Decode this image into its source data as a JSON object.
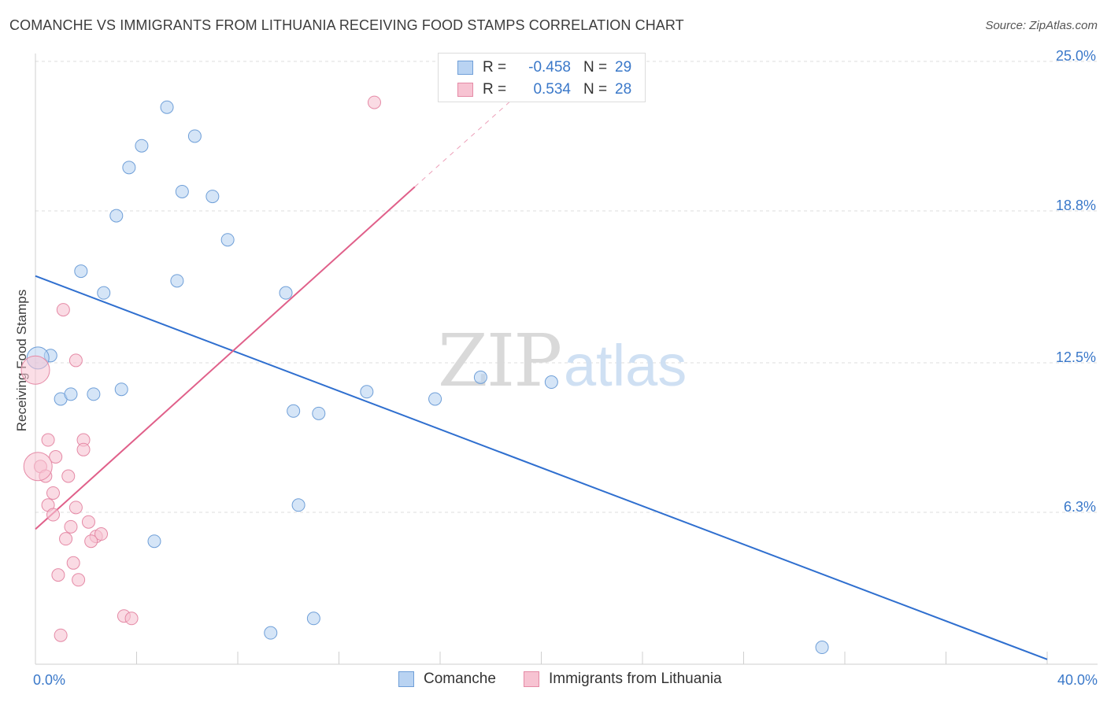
{
  "title": "COMANCHE VS IMMIGRANTS FROM LITHUANIA RECEIVING FOOD STAMPS CORRELATION CHART",
  "source": "Source: ZipAtlas.com",
  "watermark": {
    "zip": "ZIP",
    "atlas": "atlas"
  },
  "colors": {
    "blue_fill": "#b9d3f2",
    "blue_stroke": "#6f9fd8",
    "blue_line": "#2f6fcf",
    "pink_fill": "#f7c3d2",
    "pink_stroke": "#e58aa6",
    "pink_line": "#e0608a",
    "tick_text": "#3a78c9",
    "grid": "#dddddd"
  },
  "legend": {
    "rows": [
      {
        "r_label": "R =",
        "r_value": "-0.458",
        "n_label": "N =",
        "n_value": "29"
      },
      {
        "r_label": "R =",
        "r_value": "0.534",
        "n_label": "N =",
        "n_value": "28"
      }
    ]
  },
  "chart_data": {
    "type": "scatter",
    "title": "COMANCHE VS IMMIGRANTS FROM LITHUANIA RECEIVING FOOD STAMPS CORRELATION CHART",
    "xlabel": "",
    "ylabel": "Receiving Food Stamps",
    "xlim": [
      0,
      40
    ],
    "ylim": [
      0,
      25
    ],
    "x_tick_labels": [
      {
        "value": 0,
        "label": "0.0%"
      },
      {
        "value": 40,
        "label": "40.0%"
      }
    ],
    "y_tick_labels": [
      {
        "value": 6.3,
        "label": "6.3%"
      },
      {
        "value": 12.5,
        "label": "12.5%"
      },
      {
        "value": 18.8,
        "label": "18.8%"
      },
      {
        "value": 25.0,
        "label": "25.0%"
      }
    ],
    "grid": true,
    "series": [
      {
        "name": "Comanche",
        "color": "#6f9fd8",
        "points": [
          [
            0.6,
            12.8
          ],
          [
            1.0,
            11.0
          ],
          [
            1.4,
            11.2
          ],
          [
            2.3,
            11.2
          ],
          [
            3.4,
            11.4
          ],
          [
            1.8,
            16.3
          ],
          [
            2.7,
            15.4
          ],
          [
            3.2,
            18.6
          ],
          [
            3.7,
            20.6
          ],
          [
            4.2,
            21.5
          ],
          [
            5.2,
            23.1
          ],
          [
            5.6,
            15.9
          ],
          [
            5.8,
            19.6
          ],
          [
            6.3,
            21.9
          ],
          [
            7.0,
            19.4
          ],
          [
            7.6,
            17.6
          ],
          [
            9.9,
            15.4
          ],
          [
            10.2,
            10.5
          ],
          [
            11.2,
            10.4
          ],
          [
            13.1,
            11.3
          ],
          [
            15.8,
            11.0
          ],
          [
            17.6,
            11.9
          ],
          [
            20.4,
            11.7
          ],
          [
            4.7,
            5.1
          ],
          [
            10.4,
            6.6
          ],
          [
            9.3,
            1.3
          ],
          [
            11.0,
            1.9
          ],
          [
            31.1,
            0.7
          ],
          [
            0.1,
            12.7
          ]
        ]
      },
      {
        "name": "Immigrants from Lithuania",
        "color": "#e58aa6",
        "points": [
          [
            0.0,
            12.2
          ],
          [
            1.1,
            14.7
          ],
          [
            1.6,
            12.6
          ],
          [
            0.2,
            8.2
          ],
          [
            0.5,
            9.3
          ],
          [
            0.8,
            8.6
          ],
          [
            0.4,
            7.8
          ],
          [
            1.3,
            7.8
          ],
          [
            0.7,
            7.1
          ],
          [
            0.5,
            6.6
          ],
          [
            0.7,
            6.2
          ],
          [
            1.9,
            9.3
          ],
          [
            1.9,
            8.9
          ],
          [
            1.6,
            6.5
          ],
          [
            2.1,
            5.9
          ],
          [
            1.4,
            5.7
          ],
          [
            2.4,
            5.3
          ],
          [
            2.6,
            5.4
          ],
          [
            1.2,
            5.2
          ],
          [
            2.2,
            5.1
          ],
          [
            1.5,
            4.2
          ],
          [
            0.9,
            3.7
          ],
          [
            1.7,
            3.5
          ],
          [
            3.5,
            2.0
          ],
          [
            3.8,
            1.9
          ],
          [
            1.0,
            1.2
          ],
          [
            13.4,
            23.3
          ],
          [
            0.1,
            8.2
          ]
        ]
      }
    ],
    "trend_lines": [
      {
        "series": "Comanche",
        "x": [
          0,
          40
        ],
        "y": [
          16.1,
          0.2
        ],
        "style": "solid"
      },
      {
        "series": "Immigrants from Lithuania",
        "x": [
          0,
          15
        ],
        "y": [
          5.6,
          19.8
        ],
        "style": "solid"
      },
      {
        "series": "Immigrants from Lithuania",
        "x": [
          15,
          20
        ],
        "y": [
          19.8,
          24.5
        ],
        "style": "dashed"
      }
    ]
  },
  "bottom_legend": [
    {
      "label": "Comanche"
    },
    {
      "label": "Immigrants from Lithuania"
    }
  ]
}
